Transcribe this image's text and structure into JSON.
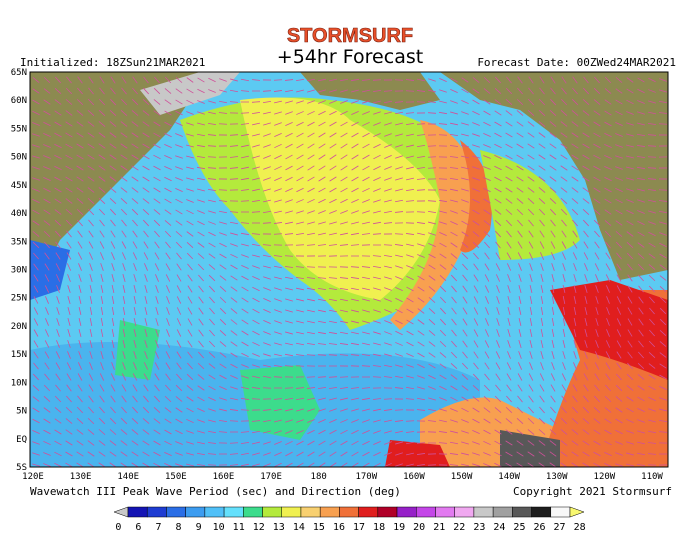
{
  "header": {
    "brand": "STORMSURF",
    "title": "+54hr Forecast",
    "initialized": "Initialized: 18ZSun21MAR2021",
    "forecast_date": "Forecast Date: 00ZWed24MAR2021"
  },
  "map": {
    "lat_labels": [
      "65N",
      "60N",
      "55N",
      "50N",
      "45N",
      "40N",
      "35N",
      "30N",
      "25N",
      "20N",
      "15N",
      "10N",
      "5N",
      "EQ",
      "5S"
    ],
    "lon_labels": [
      "120E",
      "130E",
      "140E",
      "150E",
      "160E",
      "170E",
      "180",
      "170W",
      "160W",
      "150W",
      "140W",
      "130W",
      "120W",
      "110W"
    ]
  },
  "footer": {
    "caption": "Wavewatch III Peak Wave Period (sec) and Direction (deg)",
    "copyright": "Copyright 2021 Stormsurf"
  },
  "legend": {
    "ticks": [
      0,
      6,
      7,
      8,
      9,
      10,
      11,
      12,
      13,
      14,
      15,
      16,
      17,
      18,
      19,
      20,
      21,
      22,
      23,
      24,
      25,
      26,
      27,
      28
    ],
    "under_color": "#c8c8c8",
    "over_color": "#f8f870",
    "colors": [
      "#1414b4",
      "#1e3cd2",
      "#2a6ee6",
      "#3c9cf0",
      "#50c0f8",
      "#64e0fc",
      "#3cdc8c",
      "#b4ea3c",
      "#f0f050",
      "#f8d070",
      "#f8a050",
      "#f07038",
      "#e01e1e",
      "#b00028",
      "#9620c8",
      "#c446e8",
      "#e27af0",
      "#f0a8f0",
      "#c8c8c8",
      "#a0a0a0",
      "#585858",
      "#1e1e1e",
      "#f8f8f8"
    ]
  }
}
